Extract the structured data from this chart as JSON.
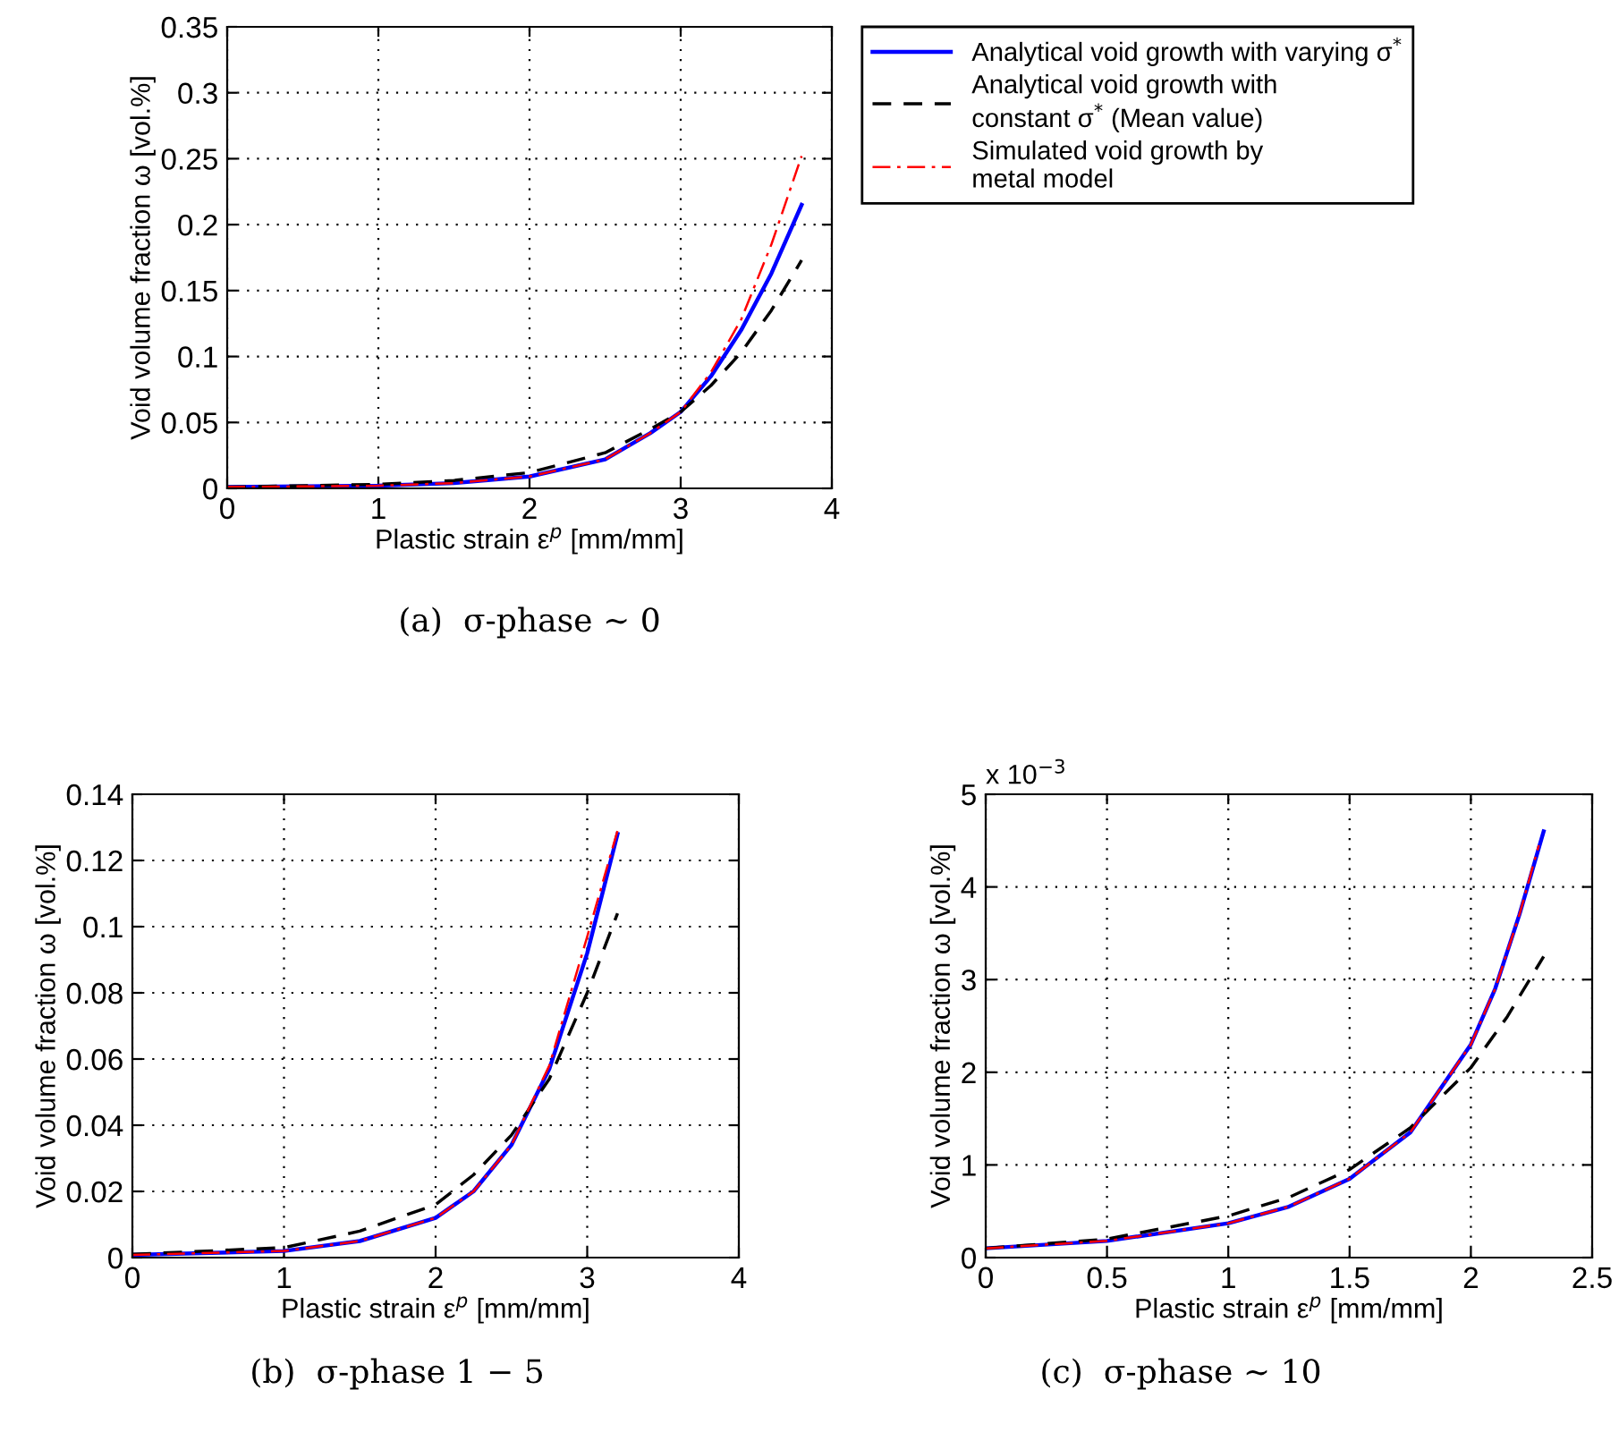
{
  "chart_data": [
    {
      "type": "line",
      "xlabel": "Plastic strain ε$^{p}$ [mm/mm]",
      "ylabel": "Void volume fraction ω [vol.%]",
      "xlim": [
        0,
        4
      ],
      "ylim": [
        0,
        0.35
      ],
      "xticks": [
        0,
        1,
        2,
        3,
        4
      ],
      "yticks": [
        0,
        0.05,
        0.1,
        0.15,
        0.2,
        0.25,
        0.3,
        0.35
      ],
      "grid": true,
      "legend": "right",
      "annotations": [
        "(a)  σ-phase ∼ 0"
      ],
      "series": [
        {
          "name": "Analytical void growth with varying σ$^{*}$",
          "color": "#0000ff",
          "line_style": "solid",
          "x": [
            0,
            1,
            1.5,
            2,
            2.5,
            2.8,
            3,
            3.2,
            3.4,
            3.6,
            3.8
          ],
          "values": [
            0.001,
            0.002,
            0.004,
            0.009,
            0.022,
            0.042,
            0.058,
            0.085,
            0.12,
            0.163,
            0.215
          ]
        },
        {
          "name": "Analytical void growth with\nconstant σ$^{*}$ (Mean value)",
          "color": "#000000",
          "line_style": "dashed",
          "x": [
            0,
            1,
            1.5,
            2,
            2.5,
            2.8,
            3,
            3.2,
            3.4,
            3.6,
            3.8
          ],
          "values": [
            0.001,
            0.003,
            0.006,
            0.012,
            0.027,
            0.045,
            0.058,
            0.078,
            0.103,
            0.135,
            0.173
          ]
        },
        {
          "name": "Simulated void growth by\nmetal model",
          "color": "#ff0000",
          "line_style": "dashdot",
          "x": [
            0,
            1,
            1.5,
            2,
            2.5,
            2.8,
            3,
            3.2,
            3.4,
            3.6,
            3.8
          ],
          "values": [
            0.001,
            0.002,
            0.004,
            0.009,
            0.022,
            0.042,
            0.058,
            0.088,
            0.128,
            0.185,
            0.252
          ]
        }
      ]
    },
    {
      "type": "line",
      "xlabel": "Plastic strain ε$^{p}$ [mm/mm]",
      "ylabel": "Void volume fraction ω [vol.%]",
      "xlim": [
        0,
        4
      ],
      "ylim": [
        0,
        0.14
      ],
      "xticks": [
        0,
        1,
        2,
        3,
        4
      ],
      "yticks": [
        0,
        0.02,
        0.04,
        0.06,
        0.08,
        0.1,
        0.12,
        0.14
      ],
      "grid": true,
      "annotations": [
        "(b)  σ-phase 1 − 5"
      ],
      "series": [
        {
          "color": "#0000ff",
          "line_style": "solid",
          "x": [
            0,
            1,
            1.5,
            2,
            2.25,
            2.5,
            2.75,
            3,
            3.2
          ],
          "values": [
            0.0008,
            0.002,
            0.005,
            0.012,
            0.02,
            0.034,
            0.057,
            0.092,
            0.128
          ]
        },
        {
          "color": "#000000",
          "line_style": "dashed",
          "x": [
            0,
            1,
            1.5,
            2,
            2.25,
            2.5,
            2.75,
            3,
            3.2
          ],
          "values": [
            0.001,
            0.003,
            0.008,
            0.016,
            0.025,
            0.037,
            0.054,
            0.08,
            0.104
          ]
        },
        {
          "color": "#ff0000",
          "line_style": "dashdot",
          "x": [
            0,
            1,
            1.5,
            2,
            2.25,
            2.5,
            2.75,
            3,
            3.2
          ],
          "values": [
            0.0008,
            0.002,
            0.005,
            0.012,
            0.02,
            0.034,
            0.058,
            0.097,
            0.129
          ]
        }
      ]
    },
    {
      "type": "line",
      "xlabel": "Plastic strain ε$^{p}$ [mm/mm]",
      "ylabel": "Void volume fraction ω [vol.%]",
      "xlim": [
        0,
        2.5
      ],
      "ylim": [
        0,
        5
      ],
      "xticks": [
        0,
        0.5,
        1,
        1.5,
        2,
        2.5
      ],
      "yticks": [
        0,
        1,
        2,
        3,
        4,
        5
      ],
      "grid": true,
      "annotations": [
        "x 10$^{−3}$",
        "(c)  σ-phase ∼ 10"
      ],
      "series": [
        {
          "color": "#0000ff",
          "line_style": "solid",
          "x": [
            0,
            0.5,
            1,
            1.25,
            1.5,
            1.75,
            2,
            2.1,
            2.2,
            2.3
          ],
          "values": [
            0.1,
            0.18,
            0.37,
            0.55,
            0.85,
            1.35,
            2.3,
            2.9,
            3.7,
            4.6
          ]
        },
        {
          "color": "#000000",
          "line_style": "dashed",
          "x": [
            0,
            0.5,
            1,
            1.25,
            1.5,
            1.75,
            2,
            2.15,
            2.3
          ],
          "values": [
            0.1,
            0.2,
            0.45,
            0.65,
            0.95,
            1.4,
            2.05,
            2.6,
            3.25
          ]
        },
        {
          "color": "#ff0000",
          "line_style": "dashdot",
          "x": [
            0,
            0.5,
            1,
            1.25,
            1.5,
            1.75,
            2,
            2.1,
            2.2,
            2.28
          ],
          "values": [
            0.1,
            0.18,
            0.37,
            0.55,
            0.85,
            1.35,
            2.3,
            2.9,
            3.7,
            4.45
          ]
        }
      ]
    }
  ]
}
